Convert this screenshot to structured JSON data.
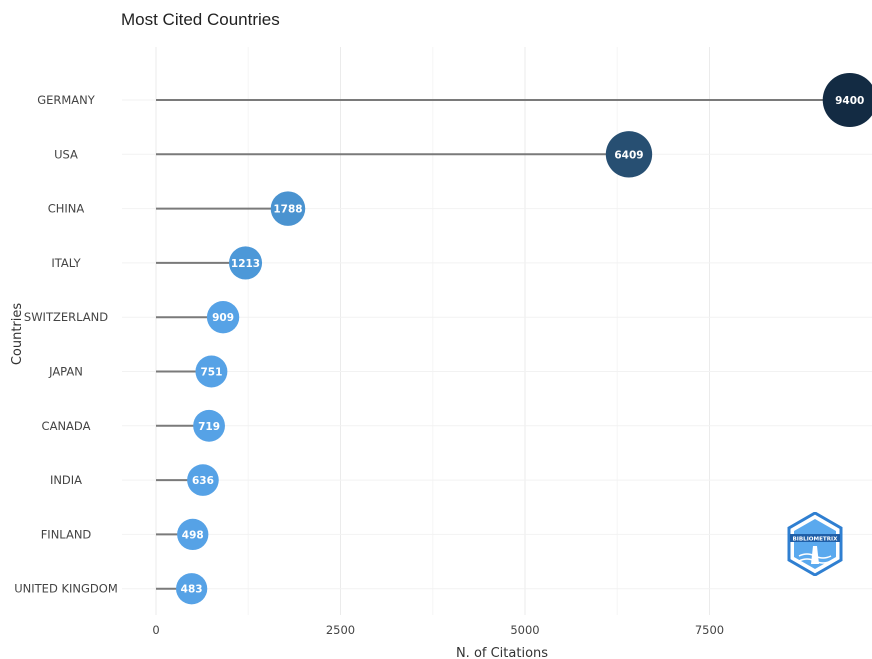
{
  "chart_data": {
    "type": "lollipop",
    "title": "Most Cited Countries",
    "xlabel": "N. of Citations",
    "ylabel": "Countries",
    "xlim": [
      -450,
      9650
    ],
    "xticks": [
      0,
      2500,
      5000,
      7500
    ],
    "xtick_labels": [
      "0",
      "2500",
      "5000",
      "7500"
    ],
    "grid": true,
    "categories": [
      "GERMANY",
      "USA",
      "CHINA",
      "ITALY",
      "SWITZERLAND",
      "JAPAN",
      "CANADA",
      "INDIA",
      "FINLAND",
      "UNITED KINGDOM"
    ],
    "values": [
      9400,
      6409,
      1788,
      1213,
      909,
      751,
      719,
      636,
      498,
      483
    ],
    "value_labels": [
      "9400",
      "6409",
      "1788",
      "1213",
      "909",
      "751",
      "719",
      "636",
      "498",
      "483"
    ],
    "colors": [
      "#132b43",
      "#274f72",
      "#4a93d0",
      "#4c98d8",
      "#56a2e6",
      "#56a2e6",
      "#56a2e6",
      "#56a2e6",
      "#56a2e6",
      "#56a2e6"
    ],
    "stem_color": "#7a7a7a"
  },
  "logo": {
    "text": "BIBLIOMETRIX",
    "color": "#2f7fd1"
  }
}
